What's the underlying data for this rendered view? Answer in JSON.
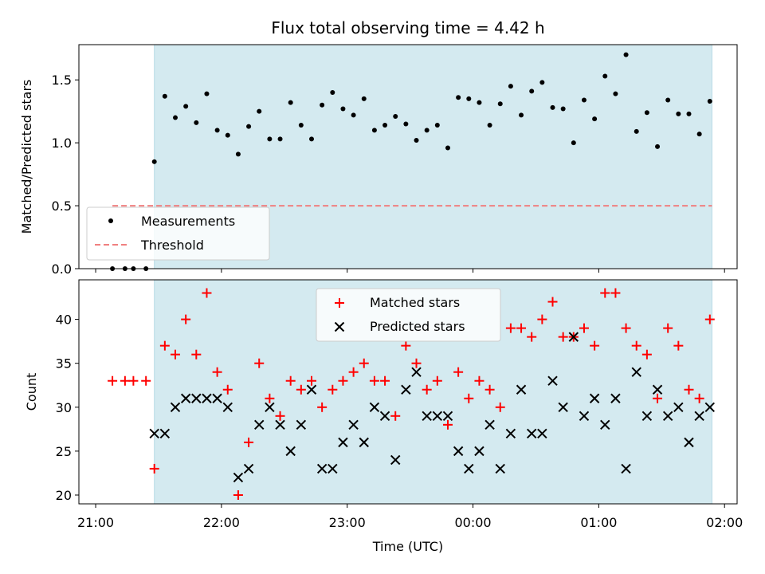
{
  "chart_data": [
    {
      "type": "scatter",
      "title": "Flux total observing time = 4.42 h",
      "ylabel": "Matched/Predicted stars",
      "xlabel": "",
      "ylim": [
        0,
        1.78
      ],
      "yticks": [
        0.0,
        0.5,
        1.0,
        1.5
      ],
      "ytick_labels": [
        "0.0",
        "0.5",
        "1.0",
        "1.5"
      ],
      "xlim": [
        "2024-01-01T20:52",
        "2024-01-02T02:06"
      ],
      "xticks": [
        "2024-01-01T21:00",
        "2024-01-01T22:00",
        "2024-01-01T23:00",
        "2024-01-02T00:00",
        "2024-01-02T01:00",
        "2024-01-02T02:00"
      ],
      "grid": false,
      "legend_position": "lower-left",
      "shaded_span": {
        "x_start": "2024-01-01T21:28",
        "x_end": "2024-01-02T01:54",
        "color": "#d4eaf0"
      },
      "threshold": {
        "name": "Threshold",
        "value": 0.5,
        "x_start": "2024-01-01T21:08",
        "x_end": "2024-01-02T01:54",
        "color": "#f08080"
      },
      "series": [
        {
          "name": "Measurements",
          "color": "#000000",
          "marker": "dot",
          "x": [
            "2024-01-01T21:08",
            "2024-01-01T21:14",
            "2024-01-01T21:18",
            "2024-01-01T21:24",
            "2024-01-01T21:28",
            "2024-01-01T21:33",
            "2024-01-01T21:38",
            "2024-01-01T21:43",
            "2024-01-01T21:48",
            "2024-01-01T21:53",
            "2024-01-01T21:58",
            "2024-01-01T22:03",
            "2024-01-01T22:08",
            "2024-01-01T22:13",
            "2024-01-01T22:18",
            "2024-01-01T22:23",
            "2024-01-01T22:28",
            "2024-01-01T22:33",
            "2024-01-01T22:38",
            "2024-01-01T22:43",
            "2024-01-01T22:48",
            "2024-01-01T22:53",
            "2024-01-01T22:58",
            "2024-01-01T23:03",
            "2024-01-01T23:08",
            "2024-01-01T23:13",
            "2024-01-01T23:18",
            "2024-01-01T23:23",
            "2024-01-01T23:28",
            "2024-01-01T23:33",
            "2024-01-01T23:38",
            "2024-01-01T23:43",
            "2024-01-01T23:48",
            "2024-01-01T23:53",
            "2024-01-01T23:58",
            "2024-01-02T00:03",
            "2024-01-02T00:08",
            "2024-01-02T00:13",
            "2024-01-02T00:18",
            "2024-01-02T00:23",
            "2024-01-02T00:28",
            "2024-01-02T00:33",
            "2024-01-02T00:38",
            "2024-01-02T00:43",
            "2024-01-02T00:48",
            "2024-01-02T00:53",
            "2024-01-02T00:58",
            "2024-01-02T01:03",
            "2024-01-02T01:08",
            "2024-01-02T01:13",
            "2024-01-02T01:18",
            "2024-01-02T01:23",
            "2024-01-02T01:28",
            "2024-01-02T01:33",
            "2024-01-02T01:38",
            "2024-01-02T01:43",
            "2024-01-02T01:48",
            "2024-01-02T01:53"
          ],
          "y": [
            0.0,
            0.0,
            0.0,
            0.0,
            0.85,
            1.37,
            1.2,
            1.29,
            1.16,
            1.39,
            1.1,
            1.06,
            0.91,
            1.13,
            1.25,
            1.03,
            1.03,
            1.32,
            1.14,
            1.03,
            1.3,
            1.4,
            1.27,
            1.22,
            1.35,
            1.1,
            1.14,
            1.21,
            1.15,
            1.02,
            1.1,
            1.14,
            0.96,
            1.36,
            1.35,
            1.32,
            1.14,
            1.31,
            1.45,
            1.22,
            1.41,
            1.48,
            1.28,
            1.27,
            1.0,
            1.34,
            1.19,
            1.53,
            1.39,
            1.7,
            1.09,
            1.24,
            0.97,
            1.34,
            1.23,
            1.23,
            1.07,
            1.33
          ]
        }
      ]
    },
    {
      "type": "scatter",
      "title": "",
      "ylabel": "Count",
      "xlabel": "Time (UTC)",
      "ylim": [
        19,
        44.5
      ],
      "yticks": [
        20,
        25,
        30,
        35,
        40
      ],
      "ytick_labels": [
        "20",
        "25",
        "30",
        "35",
        "40"
      ],
      "xlim": [
        "2024-01-01T20:52",
        "2024-01-02T02:06"
      ],
      "xticks": [
        "2024-01-01T21:00",
        "2024-01-01T22:00",
        "2024-01-01T23:00",
        "2024-01-02T00:00",
        "2024-01-02T01:00",
        "2024-01-02T02:00"
      ],
      "xtick_labels": [
        "21:00",
        "22:00",
        "23:00",
        "00:00",
        "01:00",
        "02:00"
      ],
      "grid": false,
      "legend_position": "top-center",
      "shaded_span": {
        "x_start": "2024-01-01T21:28",
        "x_end": "2024-01-02T01:54",
        "color": "#d4eaf0"
      },
      "series": [
        {
          "name": "Matched stars",
          "color": "#ff0000",
          "marker": "plus",
          "x": [
            "2024-01-01T21:08",
            "2024-01-01T21:14",
            "2024-01-01T21:18",
            "2024-01-01T21:24",
            "2024-01-01T21:28",
            "2024-01-01T21:33",
            "2024-01-01T21:38",
            "2024-01-01T21:43",
            "2024-01-01T21:48",
            "2024-01-01T21:53",
            "2024-01-01T21:58",
            "2024-01-01T22:03",
            "2024-01-01T22:08",
            "2024-01-01T22:13",
            "2024-01-01T22:18",
            "2024-01-01T22:23",
            "2024-01-01T22:28",
            "2024-01-01T22:33",
            "2024-01-01T22:38",
            "2024-01-01T22:43",
            "2024-01-01T22:48",
            "2024-01-01T22:53",
            "2024-01-01T22:58",
            "2024-01-01T23:03",
            "2024-01-01T23:08",
            "2024-01-01T23:13",
            "2024-01-01T23:18",
            "2024-01-01T23:23",
            "2024-01-01T23:28",
            "2024-01-01T23:33",
            "2024-01-01T23:38",
            "2024-01-01T23:43",
            "2024-01-01T23:48",
            "2024-01-01T23:53",
            "2024-01-01T23:58",
            "2024-01-02T00:03",
            "2024-01-02T00:08",
            "2024-01-02T00:13",
            "2024-01-02T00:18",
            "2024-01-02T00:23",
            "2024-01-02T00:28",
            "2024-01-02T00:33",
            "2024-01-02T00:38",
            "2024-01-02T00:43",
            "2024-01-02T00:48",
            "2024-01-02T00:53",
            "2024-01-02T00:58",
            "2024-01-02T01:03",
            "2024-01-02T01:08",
            "2024-01-02T01:13",
            "2024-01-02T01:18",
            "2024-01-02T01:23",
            "2024-01-02T01:28",
            "2024-01-02T01:33",
            "2024-01-02T01:38",
            "2024-01-02T01:43",
            "2024-01-02T01:48",
            "2024-01-02T01:53"
          ],
          "y": [
            33,
            33,
            33,
            33,
            23,
            37,
            36,
            40,
            36,
            43,
            34,
            32,
            20,
            26,
            35,
            31,
            29,
            33,
            32,
            33,
            30,
            32,
            33,
            34,
            35,
            33,
            33,
            29,
            37,
            35,
            32,
            33,
            28,
            34,
            31,
            33,
            32,
            30,
            39,
            39,
            38,
            40,
            42,
            38,
            38,
            39,
            37,
            43,
            43,
            39,
            37,
            36,
            31,
            39,
            37,
            32,
            31,
            40
          ]
        },
        {
          "name": "Predicted stars",
          "color": "#000000",
          "marker": "x",
          "x": [
            "2024-01-01T21:28",
            "2024-01-01T21:33",
            "2024-01-01T21:38",
            "2024-01-01T21:43",
            "2024-01-01T21:48",
            "2024-01-01T21:53",
            "2024-01-01T21:58",
            "2024-01-01T22:03",
            "2024-01-01T22:08",
            "2024-01-01T22:13",
            "2024-01-01T22:18",
            "2024-01-01T22:23",
            "2024-01-01T22:28",
            "2024-01-01T22:33",
            "2024-01-01T22:38",
            "2024-01-01T22:43",
            "2024-01-01T22:48",
            "2024-01-01T22:53",
            "2024-01-01T22:58",
            "2024-01-01T23:03",
            "2024-01-01T23:08",
            "2024-01-01T23:13",
            "2024-01-01T23:18",
            "2024-01-01T23:23",
            "2024-01-01T23:28",
            "2024-01-01T23:33",
            "2024-01-01T23:38",
            "2024-01-01T23:43",
            "2024-01-01T23:48",
            "2024-01-01T23:53",
            "2024-01-01T23:58",
            "2024-01-02T00:03",
            "2024-01-02T00:08",
            "2024-01-02T00:13",
            "2024-01-02T00:18",
            "2024-01-02T00:23",
            "2024-01-02T00:28",
            "2024-01-02T00:33",
            "2024-01-02T00:38",
            "2024-01-02T00:43",
            "2024-01-02T00:48",
            "2024-01-02T00:53",
            "2024-01-02T00:58",
            "2024-01-02T01:03",
            "2024-01-02T01:08",
            "2024-01-02T01:13",
            "2024-01-02T01:18",
            "2024-01-02T01:23",
            "2024-01-02T01:28",
            "2024-01-02T01:33",
            "2024-01-02T01:38",
            "2024-01-02T01:43",
            "2024-01-02T01:48",
            "2024-01-02T01:53"
          ],
          "y": [
            27,
            27,
            30,
            31,
            31,
            31,
            31,
            30,
            22,
            23,
            28,
            30,
            28,
            25,
            28,
            32,
            23,
            23,
            26,
            28,
            26,
            30,
            29,
            24,
            32,
            34,
            29,
            29,
            29,
            25,
            23,
            25,
            28,
            23,
            27,
            32,
            27,
            27,
            33,
            30,
            38,
            29,
            31,
            28,
            31,
            23,
            34,
            29,
            32,
            29,
            30,
            26,
            29,
            30
          ]
        }
      ]
    }
  ]
}
